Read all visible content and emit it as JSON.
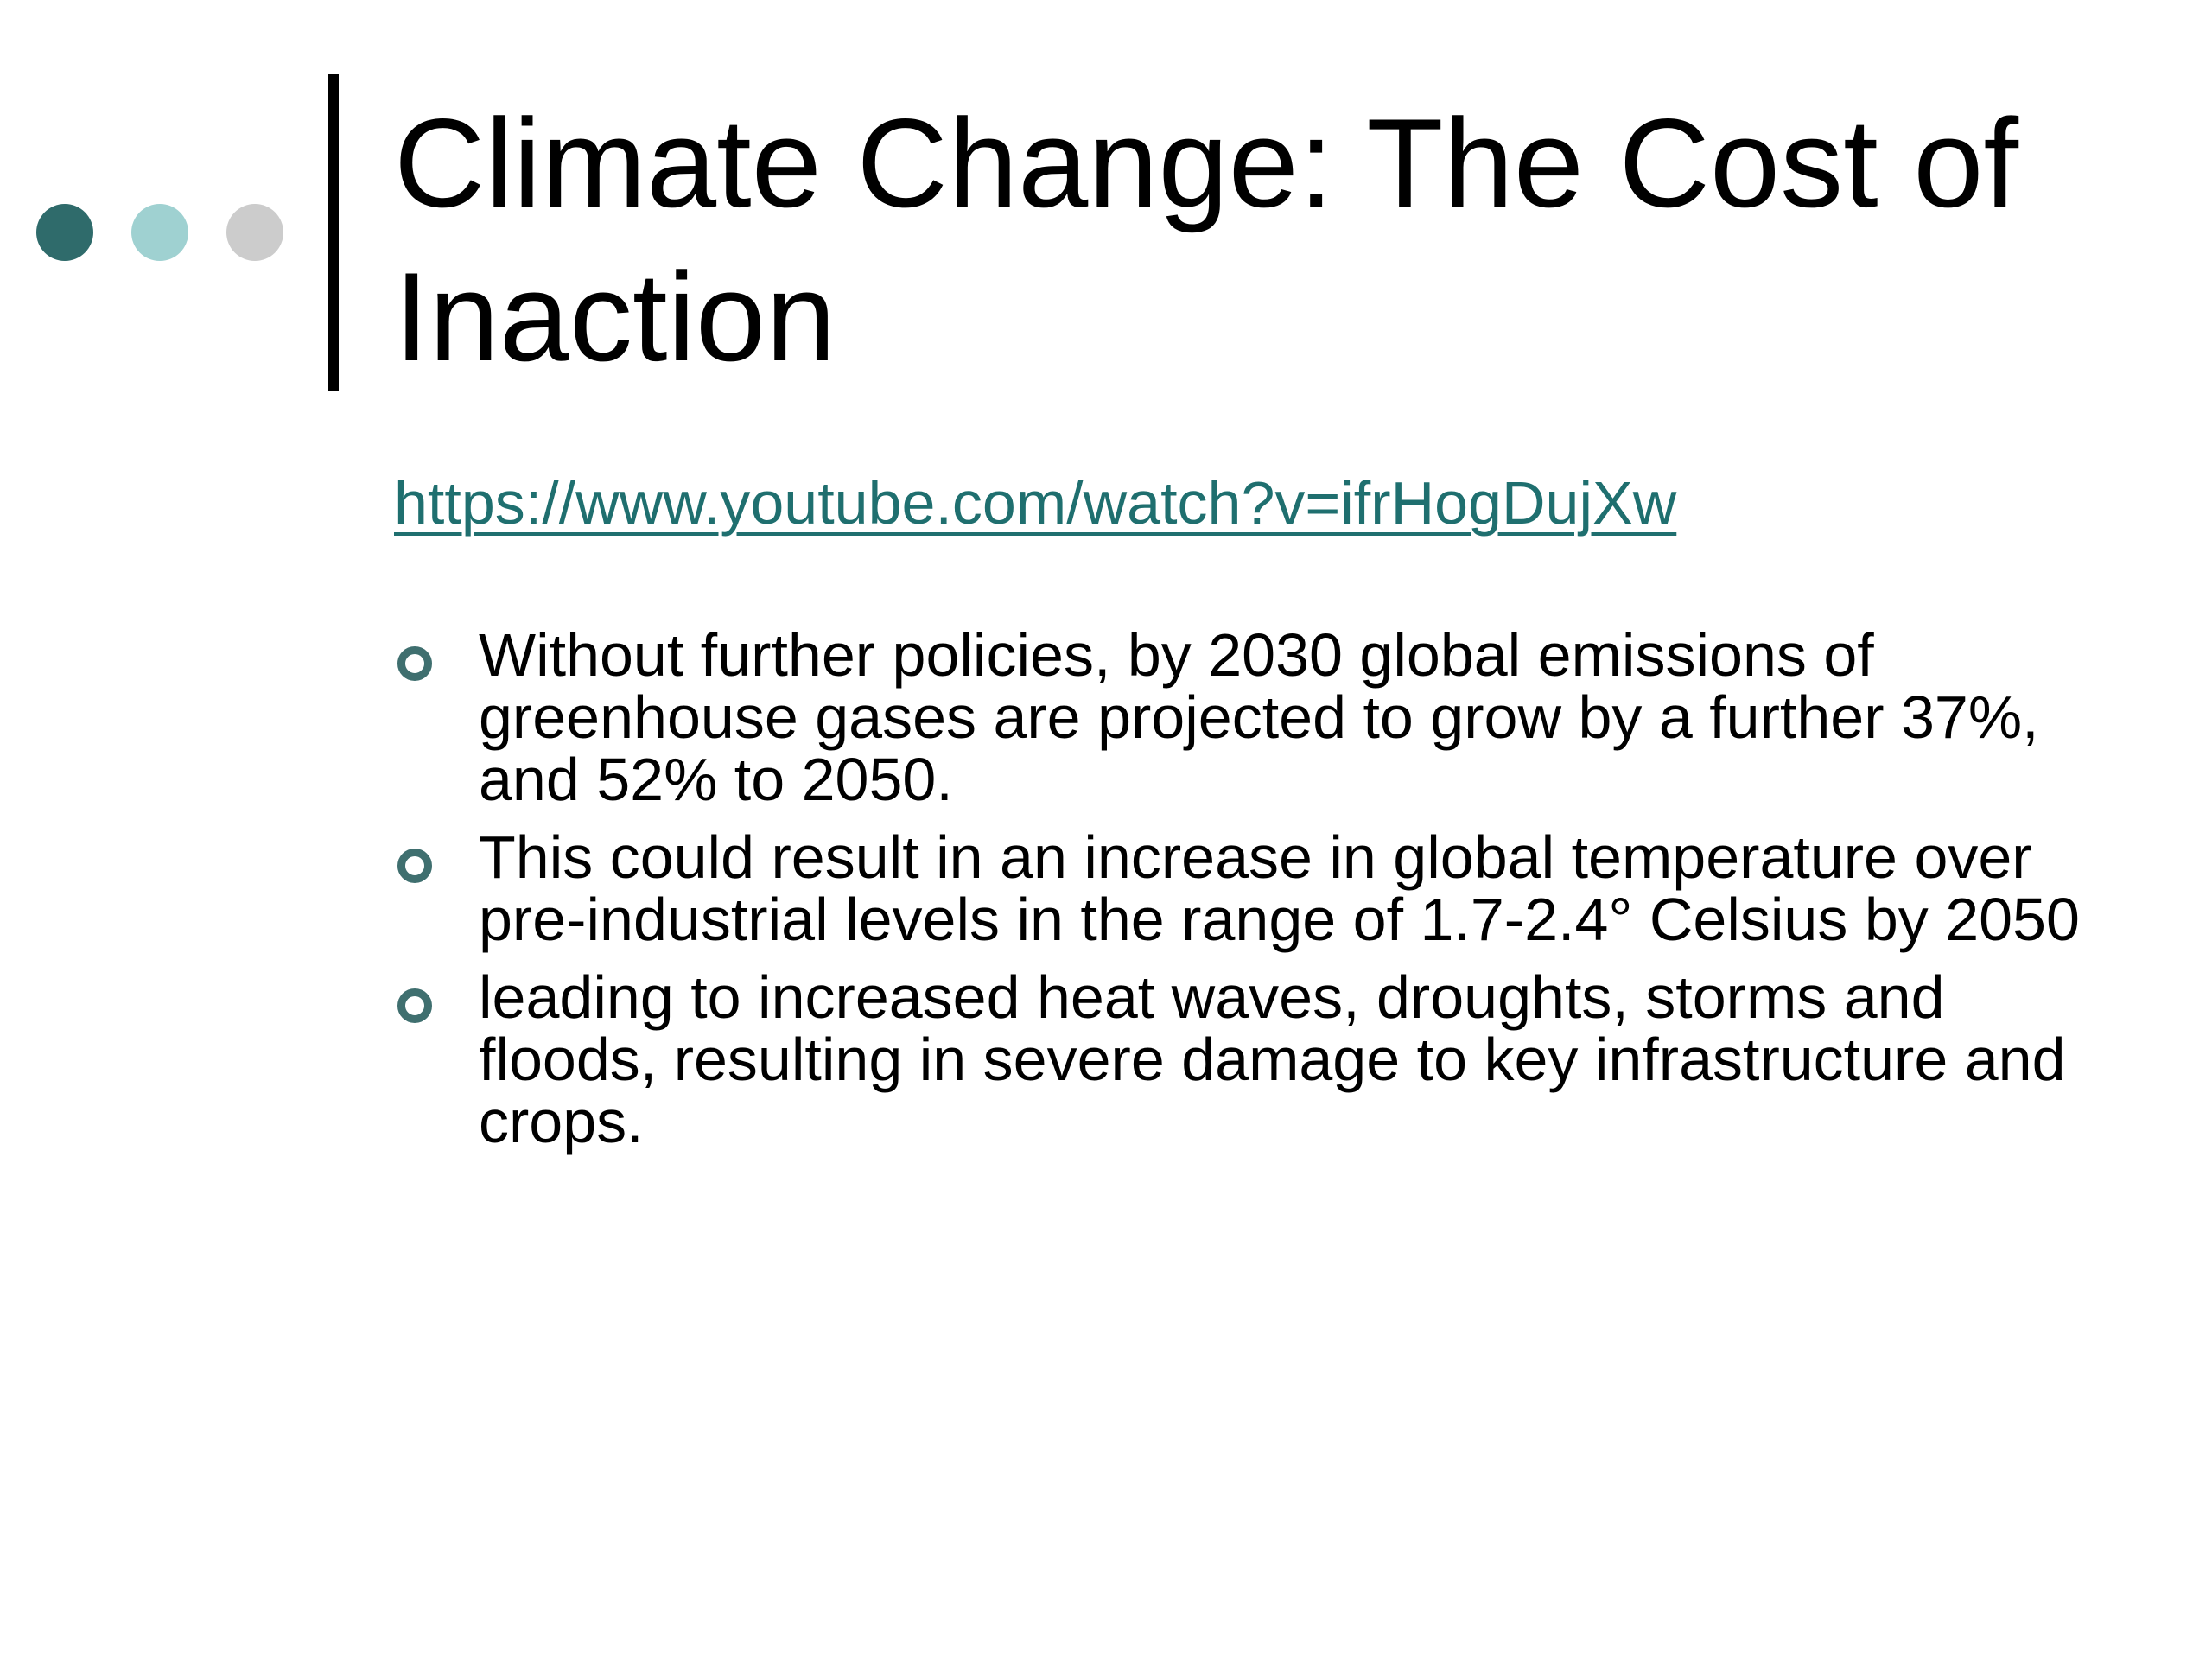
{
  "theme": {
    "dot_colors": [
      "#2f6b6b",
      "#9fd1d1",
      "#cccccc"
    ],
    "bullet_color": "#3f6f6f",
    "link_color": "#1f6f6f"
  },
  "slide": {
    "title": "Climate Change: The Cost of Inaction",
    "link": "https://www.youtube.com/watch?v=ifrHogDujXw",
    "bullets": [
      "Without further policies, by 2030 global emissions of greenhouse gases are projected to grow by a further 37%, and 52% to 2050.",
      "This could result in an increase in global temperature over pre-industrial levels in the range of 1.7-2.4° Celsius by 2050",
      "leading to increased heat waves, droughts, storms and floods, resulting in severe damage to key infrastructure and crops."
    ]
  }
}
